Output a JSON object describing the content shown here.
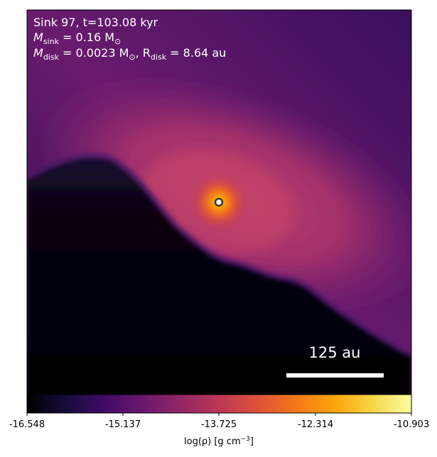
{
  "annotation": {
    "line1": "Sink 97, t=103.08 kyr",
    "sink_mass_label": "M",
    "sink_mass_sub": "sink",
    "sink_mass_value": " = 0.16 M",
    "sun_symbol": "⊙",
    "disk_mass_label": "M",
    "disk_mass_sub": "disk",
    "disk_mass_value": " = 0.0023 M",
    "disk_radius_sep": ", R",
    "disk_radius_sub": "disk",
    "disk_radius_value": " = 8.64 au"
  },
  "scale_bar": {
    "label": "125 au",
    "length_au": 125
  },
  "colorbar": {
    "ticks": [
      "-16.548",
      "-15.137",
      "-13.725",
      "-12.314",
      "-10.903"
    ],
    "label_prefix": "log(ρ) [g cm",
    "label_exp": "−3",
    "label_suffix": "]",
    "colormap": "inferno"
  },
  "colors": {
    "sink_marker_edge": "#3a3a2a",
    "sink_marker_fill": "#ffffff"
  }
}
